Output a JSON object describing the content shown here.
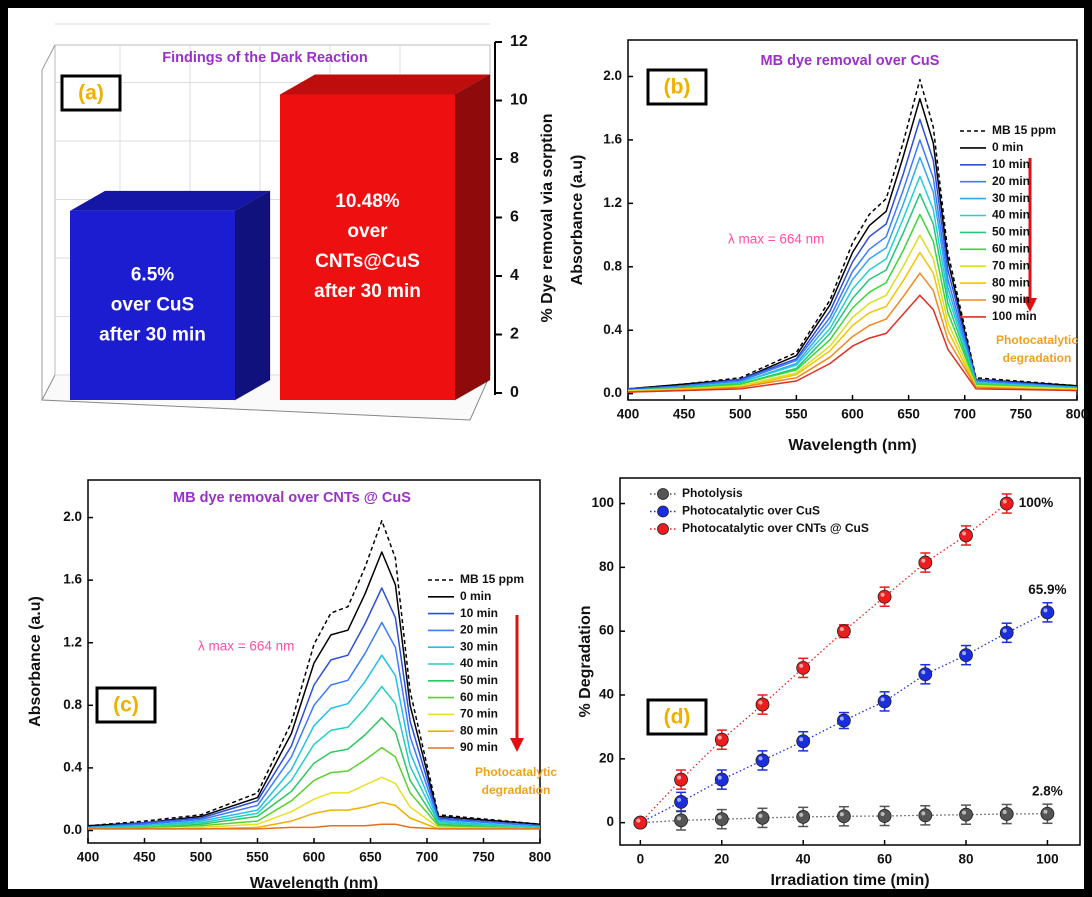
{
  "chart_data": [
    {
      "type": "bar3d",
      "panel_label": "(a)",
      "title": "Findings of the Dark Reaction",
      "ylabel": "% Dye removal via sorption",
      "categories": [
        null,
        null
      ],
      "values": [
        6.5,
        10.48
      ],
      "colors": [
        "#1c1cd0",
        "#ee1010"
      ],
      "value_labels": [
        [
          "6.5%",
          "over CuS",
          "after 30 min"
        ],
        [
          "10.48%",
          "over",
          "CNTs@CuS",
          "after 30 min"
        ]
      ],
      "ylim": [
        0,
        12
      ],
      "yticks": [
        0,
        2,
        4,
        6,
        8,
        10,
        12
      ],
      "grid": true
    },
    {
      "type": "line",
      "panel_label": "(b)",
      "title": "MB dye removal over CuS",
      "xlabel": "Wavelength (nm)",
      "ylabel": "Absorbance (a.u)",
      "lambda_max": "λ max = 664 nm",
      "note": [
        "Photocatalytic",
        "degradation"
      ],
      "x": [
        400,
        450,
        500,
        550,
        580,
        600,
        615,
        630,
        645,
        660,
        672,
        685,
        710,
        800
      ],
      "xlim": [
        400,
        800
      ],
      "xticks": [
        400,
        450,
        500,
        550,
        600,
        650,
        700,
        750,
        800
      ],
      "ylim": [
        -0.04,
        2.23
      ],
      "yticks": [
        {
          "value": 0,
          "label": "0.0"
        },
        0.4,
        0.8,
        1.2,
        1.6,
        {
          "value": 2,
          "label": "2.0"
        }
      ],
      "series": [
        {
          "name": "MB 15 ppm",
          "color": "#000000",
          "dashed": true,
          "values": [
            0.03,
            0.06,
            0.1,
            0.26,
            0.59,
            0.95,
            1.13,
            1.23,
            1.58,
            1.98,
            1.68,
            0.89,
            0.1,
            0.05
          ]
        },
        {
          "name": "0 min",
          "color": "#000000",
          "values": [
            0.03,
            0.06,
            0.09,
            0.24,
            0.56,
            0.89,
            1.06,
            1.15,
            1.49,
            1.86,
            1.58,
            0.84,
            0.09,
            0.05
          ]
        },
        {
          "name": "10 min",
          "color": "#2b4fd8",
          "values": [
            0.03,
            0.05,
            0.09,
            0.22,
            0.52,
            0.83,
            0.99,
            1.07,
            1.38,
            1.73,
            1.47,
            0.78,
            0.09,
            0.04
          ]
        },
        {
          "name": "20 min",
          "color": "#3a7bff",
          "values": [
            0.02,
            0.05,
            0.08,
            0.21,
            0.48,
            0.77,
            0.91,
            0.99,
            1.28,
            1.6,
            1.36,
            0.72,
            0.08,
            0.04
          ]
        },
        {
          "name": "30 min",
          "color": "#2fa8f0",
          "values": [
            0.02,
            0.04,
            0.07,
            0.19,
            0.45,
            0.72,
            0.85,
            0.92,
            1.19,
            1.49,
            1.27,
            0.67,
            0.07,
            0.04
          ]
        },
        {
          "name": "40 min",
          "color": "#22d0d8",
          "values": [
            0.02,
            0.04,
            0.07,
            0.18,
            0.41,
            0.66,
            0.78,
            0.85,
            1.1,
            1.37,
            1.16,
            0.62,
            0.07,
            0.03
          ]
        },
        {
          "name": "50 min",
          "color": "#22c77a",
          "values": [
            0.02,
            0.04,
            0.06,
            0.16,
            0.38,
            0.6,
            0.72,
            0.78,
            1.01,
            1.26,
            1.07,
            0.57,
            0.06,
            0.03
          ]
        },
        {
          "name": "60 min",
          "color": "#3ad63a",
          "values": [
            0.02,
            0.03,
            0.06,
            0.15,
            0.34,
            0.54,
            0.64,
            0.7,
            0.9,
            1.13,
            0.96,
            0.51,
            0.06,
            0.03
          ]
        },
        {
          "name": "70 min",
          "color": "#d8e020",
          "values": [
            0.02,
            0.03,
            0.05,
            0.13,
            0.3,
            0.48,
            0.57,
            0.62,
            0.8,
            1.0,
            0.85,
            0.45,
            0.05,
            0.03
          ]
        },
        {
          "name": "80 min",
          "color": "#f5c400",
          "values": [
            0.01,
            0.03,
            0.04,
            0.12,
            0.27,
            0.43,
            0.51,
            0.55,
            0.71,
            0.89,
            0.76,
            0.4,
            0.04,
            0.02
          ]
        },
        {
          "name": "90 min",
          "color": "#f08a20",
          "values": [
            0.01,
            0.02,
            0.04,
            0.1,
            0.23,
            0.36,
            0.43,
            0.47,
            0.61,
            0.76,
            0.65,
            0.34,
            0.04,
            0.02
          ]
        },
        {
          "name": "100 min",
          "color": "#e03020",
          "values": [
            0.01,
            0.02,
            0.03,
            0.08,
            0.19,
            0.3,
            0.35,
            0.38,
            0.5,
            0.62,
            0.53,
            0.28,
            0.03,
            0.02
          ]
        }
      ]
    },
    {
      "type": "line",
      "panel_label": "(c)",
      "title": "MB dye removal over CNTs @ CuS",
      "xlabel": "Wavelength (nm)",
      "ylabel": "Absorbance (a.u)",
      "lambda_max": "λ max = 664 nm",
      "note": [
        "Photocatalytic",
        "degradation"
      ],
      "x": [
        400,
        450,
        500,
        550,
        580,
        600,
        615,
        630,
        645,
        660,
        672,
        685,
        710,
        800
      ],
      "xlim": [
        400,
        800
      ],
      "xticks": [
        400,
        450,
        500,
        550,
        600,
        650,
        700,
        750,
        800
      ],
      "ylim": [
        -0.08,
        2.24
      ],
      "yticks": [
        {
          "value": 0,
          "label": "0.0"
        },
        0.4,
        0.8,
        1.2,
        1.6,
        {
          "value": 2,
          "label": "2.0"
        }
      ],
      "series": [
        {
          "name": "MB 15 ppm",
          "color": "#000000",
          "dashed": true,
          "values": [
            0.03,
            0.06,
            0.1,
            0.24,
            0.69,
            1.19,
            1.39,
            1.43,
            1.68,
            1.98,
            1.74,
            0.89,
            0.1,
            0.04
          ]
        },
        {
          "name": "0 min",
          "color": "#000000",
          "values": [
            0.03,
            0.05,
            0.09,
            0.21,
            0.62,
            1.07,
            1.25,
            1.28,
            1.51,
            1.78,
            1.57,
            0.8,
            0.09,
            0.04
          ]
        },
        {
          "name": "10 min",
          "color": "#2b4fd8",
          "values": [
            0.02,
            0.05,
            0.08,
            0.19,
            0.54,
            0.93,
            1.09,
            1.12,
            1.32,
            1.55,
            1.36,
            0.7,
            0.08,
            0.03
          ]
        },
        {
          "name": "20 min",
          "color": "#3a7bff",
          "values": [
            0.02,
            0.04,
            0.07,
            0.16,
            0.47,
            0.8,
            0.93,
            0.96,
            1.13,
            1.33,
            1.17,
            0.6,
            0.07,
            0.03
          ]
        },
        {
          "name": "30 min",
          "color": "#22c0e8",
          "values": [
            0.02,
            0.03,
            0.06,
            0.13,
            0.39,
            0.67,
            0.78,
            0.81,
            0.95,
            1.12,
            0.99,
            0.5,
            0.06,
            0.02
          ]
        },
        {
          "name": "40 min",
          "color": "#22d0c0",
          "values": [
            0.01,
            0.03,
            0.05,
            0.11,
            0.32,
            0.55,
            0.64,
            0.66,
            0.78,
            0.92,
            0.81,
            0.41,
            0.05,
            0.02
          ]
        },
        {
          "name": "50 min",
          "color": "#2bc860",
          "values": [
            0.01,
            0.02,
            0.04,
            0.09,
            0.25,
            0.43,
            0.5,
            0.52,
            0.61,
            0.72,
            0.63,
            0.32,
            0.04,
            0.01
          ]
        },
        {
          "name": "60 min",
          "color": "#5ad030",
          "values": [
            0.01,
            0.02,
            0.03,
            0.06,
            0.19,
            0.32,
            0.37,
            0.38,
            0.45,
            0.53,
            0.47,
            0.24,
            0.03,
            0.01
          ]
        },
        {
          "name": "70 min",
          "color": "#e8e020",
          "values": [
            0.01,
            0.01,
            0.02,
            0.04,
            0.12,
            0.2,
            0.24,
            0.24,
            0.29,
            0.34,
            0.3,
            0.15,
            0.02,
            0.01
          ]
        },
        {
          "name": "80 min",
          "color": "#f0b000",
          "values": [
            0.01,
            0.01,
            0.01,
            0.02,
            0.06,
            0.11,
            0.13,
            0.13,
            0.15,
            0.18,
            0.16,
            0.08,
            0.01,
            0.01
          ]
        },
        {
          "name": "90 min",
          "color": "#e07020",
          "values": [
            0.01,
            0.01,
            0.01,
            0.01,
            0.02,
            0.02,
            0.03,
            0.03,
            0.03,
            0.04,
            0.04,
            0.02,
            0.01,
            0.01
          ]
        }
      ]
    },
    {
      "type": "scatter",
      "panel_label": "(d)",
      "xlabel": "Irradiation time (min)",
      "ylabel": "% Degradation",
      "x": [
        0,
        10,
        20,
        30,
        40,
        50,
        60,
        70,
        80,
        90,
        100
      ],
      "xlim": [
        -5,
        108
      ],
      "xticks": [
        0,
        20,
        40,
        60,
        80,
        100
      ],
      "ylim": [
        -7,
        108
      ],
      "yticks": [
        0,
        20,
        40,
        60,
        80,
        100
      ],
      "series": [
        {
          "name": "Photolysis",
          "color": "#555555",
          "values": [
            0,
            0.7,
            1.1,
            1.5,
            1.8,
            2,
            2.1,
            2.3,
            2.5,
            2.7,
            2.8
          ],
          "errors": [
            0.5,
            3,
            3,
            3,
            3,
            3,
            3,
            3,
            3,
            3,
            3
          ],
          "value_labels": [
            null,
            null,
            null,
            null,
            null,
            null,
            null,
            null,
            null,
            null,
            "2.8%"
          ]
        },
        {
          "name": "Photocatalytic over CuS",
          "color": "#1a2ee0",
          "values": [
            0,
            6.5,
            13.5,
            19.5,
            25.5,
            32,
            38,
            46.5,
            52.5,
            59.5,
            65.9
          ],
          "errors": [
            1,
            3,
            3,
            3,
            3,
            2.5,
            3,
            3,
            3,
            3,
            3
          ],
          "value_labels": [
            null,
            null,
            null,
            null,
            null,
            null,
            null,
            null,
            null,
            null,
            "65.9%"
          ]
        },
        {
          "name": "Photocatalytic over CNTs @ CuS",
          "color": "#ee1c1c",
          "values": [
            0,
            13.5,
            26,
            37,
            48.5,
            60,
            70.8,
            81.5,
            90,
            100,
            null
          ],
          "errors": [
            1,
            3,
            3,
            3,
            3,
            2,
            3,
            3,
            3,
            3,
            null
          ],
          "value_labels": [
            null,
            null,
            null,
            null,
            null,
            null,
            null,
            null,
            null,
            "100%",
            null
          ]
        }
      ]
    }
  ]
}
